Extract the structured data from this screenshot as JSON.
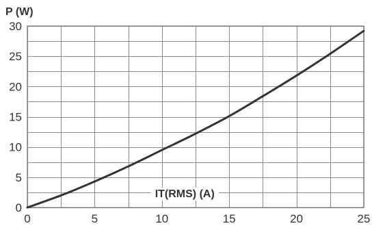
{
  "chart_data": {
    "type": "line",
    "ylabel": "P (W)",
    "xlabel": "IT(RMS) (A)",
    "xlim": [
      0,
      25
    ],
    "ylim": [
      0,
      30
    ],
    "x_ticks": [
      0,
      5,
      10,
      15,
      20,
      25
    ],
    "y_ticks": [
      0,
      5,
      10,
      15,
      20,
      25,
      30
    ],
    "x_minor_step": 2.5,
    "y_minor_step": 2.5,
    "grid": true,
    "series": [
      {
        "x": [
          0,
          2.5,
          5,
          7.5,
          10,
          12.5,
          15,
          17.5,
          20,
          22.5,
          25
        ],
        "y": [
          0,
          2.0,
          4.3,
          6.8,
          9.5,
          12.2,
          15.1,
          18.4,
          21.8,
          25.4,
          29.2
        ]
      }
    ]
  }
}
